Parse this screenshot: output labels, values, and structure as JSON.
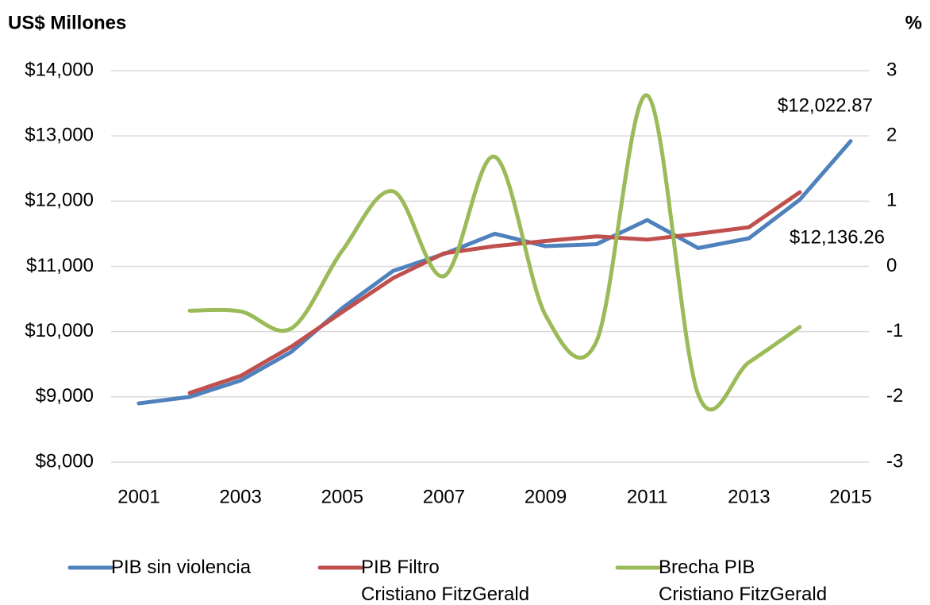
{
  "chart_data": {
    "type": "line",
    "y_label": "US$ Millones",
    "y2_label": "%",
    "x": [
      2001,
      2002,
      2003,
      2004,
      2005,
      2006,
      2007,
      2008,
      2009,
      2010,
      2011,
      2012,
      2013,
      2014,
      2015
    ],
    "xlim": [
      2001,
      2015
    ],
    "xticks": [
      2001,
      2003,
      2005,
      2007,
      2009,
      2011,
      2013,
      2015
    ],
    "ylim": [
      8000,
      14000
    ],
    "yticks": [
      {
        "value": 8000,
        "label": "$8,000"
      },
      {
        "value": 9000,
        "label": "$9,000"
      },
      {
        "value": 10000,
        "label": "$10,000"
      },
      {
        "value": 11000,
        "label": "$11,000"
      },
      {
        "value": 12000,
        "label": "$12,000"
      },
      {
        "value": 13000,
        "label": "$13,000"
      },
      {
        "value": 14000,
        "label": "$14,000"
      }
    ],
    "y2lim": [
      -3,
      3
    ],
    "y2ticks": [
      -3,
      -2,
      -1,
      0,
      1,
      2,
      3
    ],
    "grid": true,
    "legend": "bottom",
    "series": [
      {
        "name": "PIB sin violencia",
        "color": "#4f81bd",
        "values": [
          8900,
          9000,
          9250,
          9690,
          10360,
          10930,
          11190,
          11500,
          11310,
          11340,
          11710,
          11280,
          11430,
          12022.87,
          12920
        ]
      },
      {
        "name": "PIB Filtro\nCristiano FitzGerald",
        "color": "#c0504d",
        "values": [
          null,
          9060,
          9320,
          9770,
          10300,
          10820,
          11200,
          11310,
          11390,
          11460,
          11410,
          11500,
          11600,
          12136.26,
          null
        ]
      },
      {
        "name": "Brecha PIB\nCristiano FitzGerald",
        "color": "#9bbb59",
        "axis": "y2",
        "smooth": true,
        "values": [
          null,
          -0.68,
          -0.69,
          -0.95,
          0.24,
          1.15,
          -0.15,
          1.68,
          -0.75,
          -1.15,
          2.62,
          -1.96,
          -1.47,
          -0.93,
          null
        ]
      }
    ],
    "annotations": [
      {
        "text": "$12,022.87"
      },
      {
        "text": "$12,136.26"
      }
    ]
  }
}
